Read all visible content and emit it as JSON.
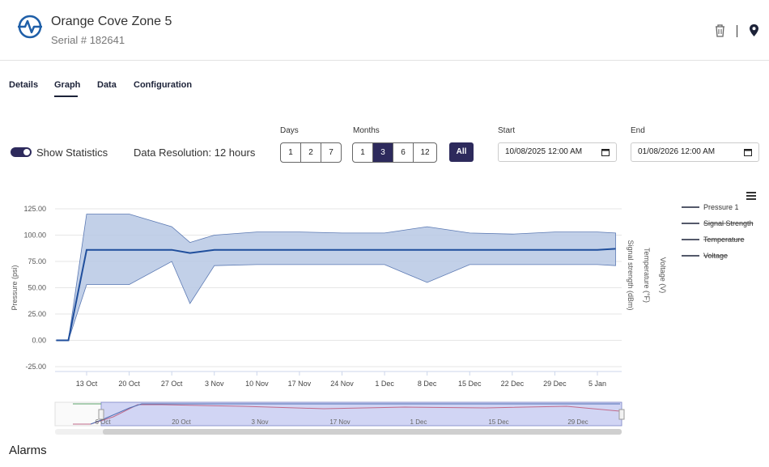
{
  "header": {
    "title": "Orange Cove Zone 5",
    "serial": "Serial # 182641",
    "trash_icon": "trash-icon",
    "location_icon": "map-pin-icon"
  },
  "tabs": [
    {
      "label": "Details"
    },
    {
      "label": "Graph"
    },
    {
      "label": "Data"
    },
    {
      "label": "Configuration"
    }
  ],
  "controls": {
    "show_statistics": "Show Statistics",
    "data_resolution": "Data Resolution: 12 hours",
    "days_label": "Days",
    "days": [
      "1",
      "2",
      "7"
    ],
    "months_label": "Months",
    "months": [
      "1",
      "3",
      "6",
      "12"
    ],
    "months_selected": "3",
    "all_label": "All",
    "start_label": "Start",
    "start_value": "10/08/2025 12:00  AM",
    "end_label": "End",
    "end_value": "01/08/2026 12:00  AM"
  },
  "chart_data": {
    "type": "line",
    "ylabel": "Pressure (psi)",
    "right_axis_labels": [
      "Signal strength (dBm)",
      "Temperature (°F)",
      "Voltage (V)"
    ],
    "y_ticks": [
      "125.00",
      "100.00",
      "75.00",
      "50.00",
      "25.00",
      "0.00",
      "-25.00"
    ],
    "ylim": [
      -25,
      125
    ],
    "x_ticks": [
      "13 Oct",
      "20 Oct",
      "27 Oct",
      "3 Nov",
      "10 Nov",
      "17 Nov",
      "24 Nov",
      "1 Dec",
      "8 Dec",
      "15 Dec",
      "22 Dec",
      "29 Dec",
      "5 Jan"
    ],
    "legend": [
      {
        "name": "Pressure 1",
        "enabled": true
      },
      {
        "name": "Signal Strength",
        "enabled": false
      },
      {
        "name": "Temperature",
        "enabled": false
      },
      {
        "name": "Voltage",
        "enabled": false
      }
    ],
    "legend_position": "top-right",
    "series": [
      {
        "name": "Pressure 1",
        "color": "#1f4e9c",
        "x": [
          "8 Oct",
          "10 Oct",
          "13 Oct",
          "20 Oct",
          "27 Oct",
          "30 Oct",
          "3 Nov",
          "10 Nov",
          "17 Nov",
          "24 Nov",
          "1 Dec",
          "8 Dec",
          "15 Dec",
          "22 Dec",
          "29 Dec",
          "5 Jan",
          "8 Jan"
        ],
        "values": [
          0,
          0,
          86,
          86,
          86,
          83,
          86,
          86,
          86,
          86,
          86,
          86,
          86,
          86,
          86,
          86,
          87
        ],
        "band_max": [
          0,
          0,
          120,
          120,
          108,
          93,
          100,
          103,
          103,
          102,
          102,
          108,
          102,
          101,
          103,
          103,
          102
        ],
        "band_min": [
          0,
          0,
          53,
          53,
          75,
          35,
          71,
          72,
          72,
          72,
          72,
          55,
          72,
          72,
          72,
          72,
          71
        ]
      }
    ],
    "navigator": {
      "x_ticks": [
        "6 Oct",
        "20 Oct",
        "3 Nov",
        "17 Nov",
        "1 Dec",
        "15 Dec",
        "29 Dec"
      ]
    }
  },
  "alarms": {
    "title": "Alarms"
  },
  "colors": {
    "accent": "#2d2a5c",
    "series": "#1f4e9c",
    "band": "#b7c8e4"
  }
}
